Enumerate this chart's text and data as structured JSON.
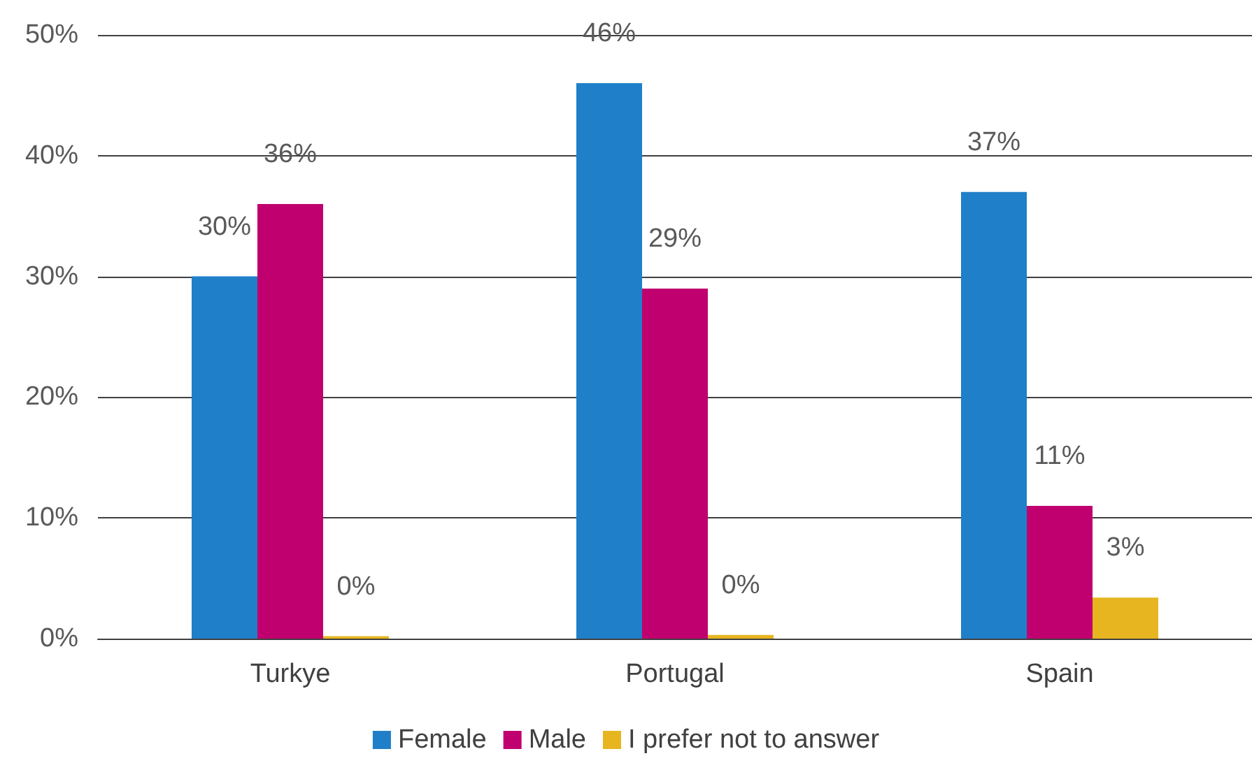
{
  "chart_data": {
    "type": "bar",
    "categories": [
      "Turkye",
      "Portugal",
      "Spain"
    ],
    "series": [
      {
        "name": "Female",
        "color": "#1f7fc8",
        "values": [
          30,
          46,
          37
        ],
        "value_labels": [
          "30%",
          "46%",
          "37%"
        ]
      },
      {
        "name": "Male",
        "color": "#c0006f",
        "values": [
          36,
          29,
          11
        ],
        "value_labels": [
          "36%",
          "29%",
          "11%"
        ]
      },
      {
        "name": "I prefer not to answer",
        "color": "#e6b520",
        "values": [
          0.2,
          0.3,
          3.4
        ],
        "value_labels": [
          "0%",
          "0%",
          "3%"
        ]
      }
    ],
    "ylim": [
      0,
      50
    ],
    "yticks": [
      {
        "value": 0,
        "label": "0%"
      },
      {
        "value": 10,
        "label": "10%"
      },
      {
        "value": 20,
        "label": "20%"
      },
      {
        "value": 30,
        "label": "30%"
      },
      {
        "value": 40,
        "label": "40%"
      },
      {
        "value": 50,
        "label": "50%"
      }
    ],
    "grid": "y",
    "legend": "bottom"
  }
}
